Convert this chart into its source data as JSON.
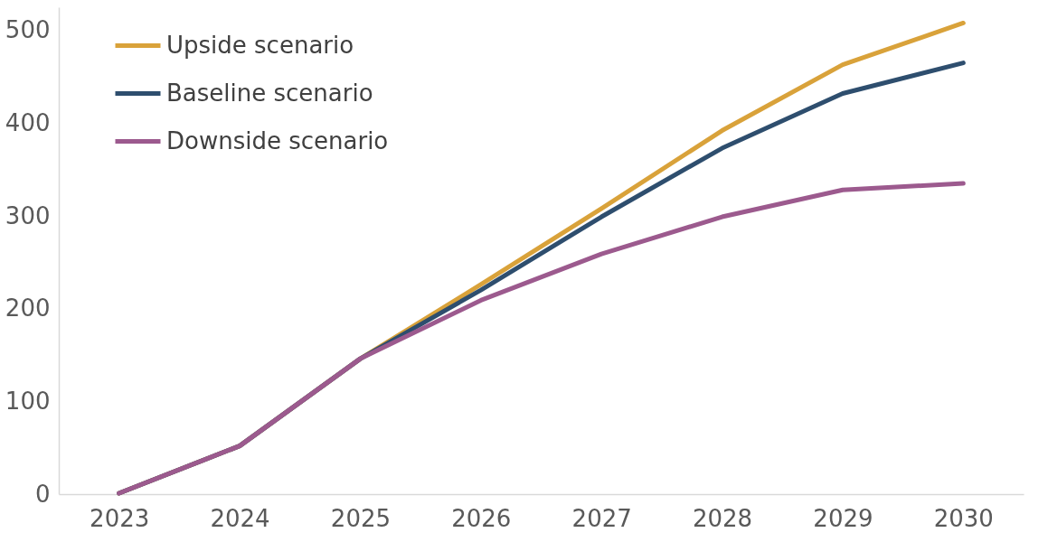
{
  "chart_data": {
    "type": "line",
    "categories": [
      "2023",
      "2024",
      "2025",
      "2026",
      "2027",
      "2028",
      "2029",
      "2030"
    ],
    "series": [
      {
        "name": "Upside scenario",
        "color": "#d9a23a",
        "values": [
          1,
          52,
          146,
          226,
          308,
          392,
          463,
          508
        ]
      },
      {
        "name": "Baseline scenario",
        "color": "#2e4e6e",
        "values": [
          1,
          52,
          146,
          220,
          299,
          373,
          432,
          465
        ]
      },
      {
        "name": "Downside scenario",
        "color": "#9c5a8e",
        "values": [
          1,
          52,
          146,
          209,
          259,
          299,
          328,
          335
        ]
      }
    ],
    "ylim": [
      0,
      525
    ],
    "yticks": [
      0,
      100,
      200,
      300,
      400,
      500
    ],
    "grid": false,
    "legend": "top left",
    "marker": "none",
    "line_style": "solid"
  }
}
